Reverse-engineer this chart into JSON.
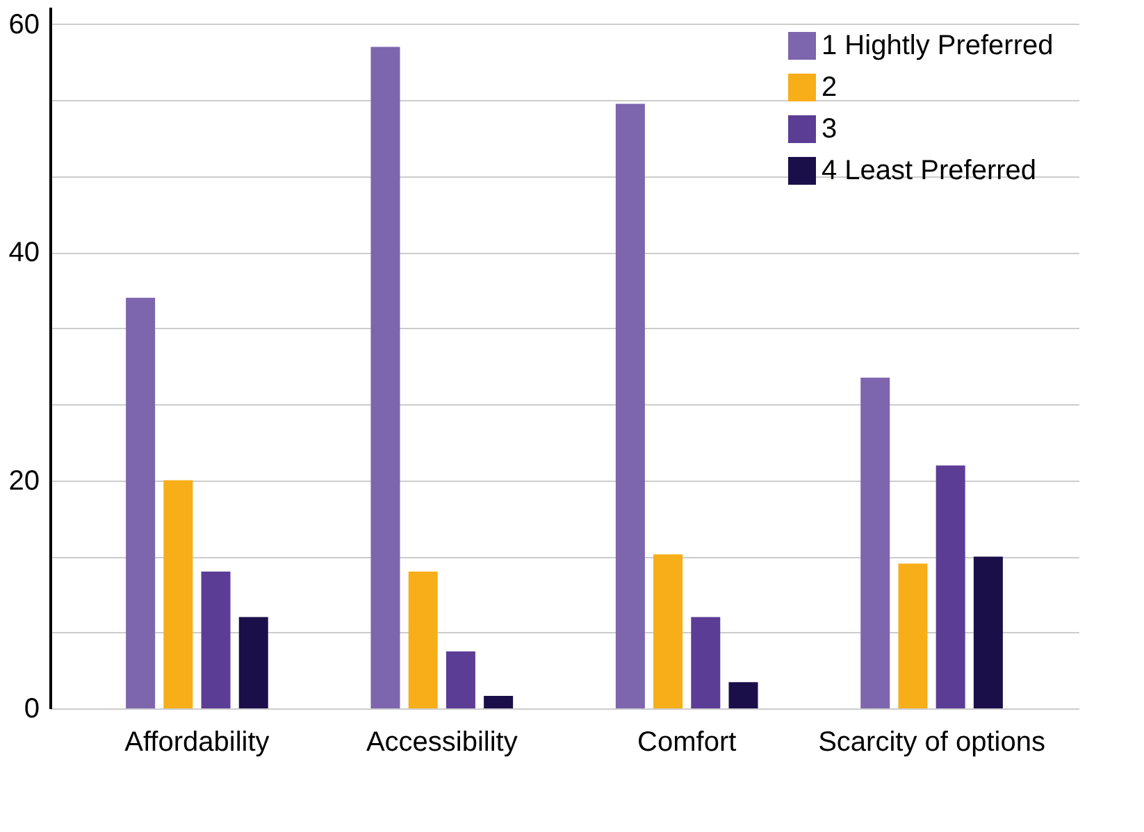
{
  "chart_data": {
    "type": "bar",
    "categories": [
      "Affordability",
      "Accessibility",
      "Comfort",
      "Scarcity of options"
    ],
    "series": [
      {
        "name": "1 Hightly Preferred",
        "color": "#7d66ad",
        "values": [
          36,
          58,
          53,
          29
        ]
      },
      {
        "name": "2",
        "color": "#f8ae18",
        "values": [
          20,
          12,
          13.5,
          12.7
        ]
      },
      {
        "name": "3",
        "color": "#5c3d96",
        "values": [
          12,
          5,
          8,
          21.3
        ]
      },
      {
        "name": "4 Least Preferred",
        "color": "#1b0f4a",
        "values": [
          8,
          1.1,
          2.3,
          13.3
        ]
      }
    ],
    "ylim": [
      0,
      61.5
    ],
    "yticks": [
      0,
      {
        "value": 6.67,
        "label": null
      },
      {
        "value": 13.33,
        "label": null
      },
      20,
      {
        "value": 26.67,
        "label": null
      },
      {
        "value": 33.33,
        "label": null
      },
      40,
      {
        "value": 46.67,
        "label": null
      },
      {
        "value": 53.33,
        "label": null
      },
      60
    ],
    "grid": "y",
    "legend": "top right"
  }
}
